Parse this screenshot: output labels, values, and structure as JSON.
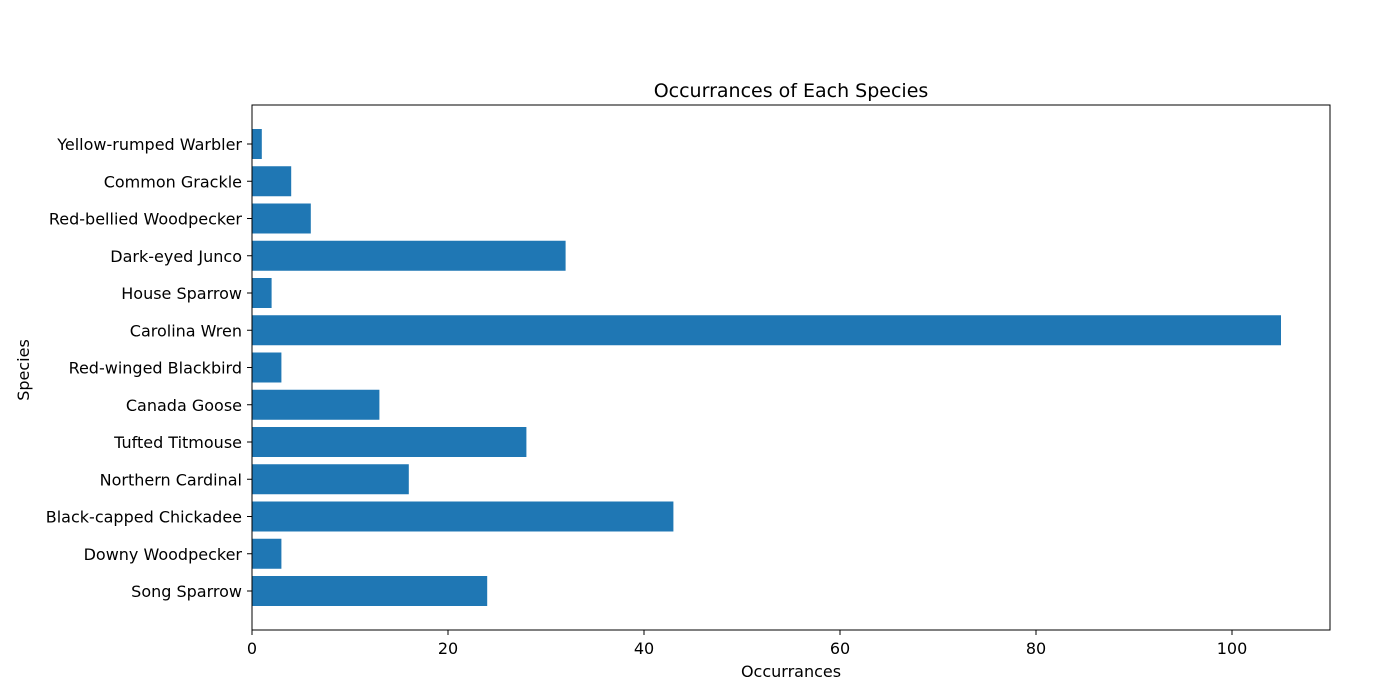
{
  "chart_data": {
    "type": "bar",
    "orientation": "horizontal",
    "title": "Occurrances of Each Species",
    "xlabel": "Occurrances",
    "ylabel": "Species",
    "xlim": [
      0,
      110
    ],
    "xticks": [
      0,
      20,
      40,
      60,
      80,
      100
    ],
    "grid": false,
    "categories": [
      "Song Sparrow",
      "Downy Woodpecker",
      "Black-capped Chickadee",
      "Northern Cardinal",
      "Tufted Titmouse",
      "Canada Goose",
      "Red-winged Blackbird",
      "Carolina Wren",
      "House Sparrow",
      "Dark-eyed Junco",
      "Red-bellied Woodpecker",
      "Common Grackle",
      "Yellow-rumped Warbler"
    ],
    "values": [
      24,
      3,
      43,
      16,
      28,
      13,
      3,
      105,
      2,
      32,
      6,
      4,
      1
    ],
    "bar_color": "#1f77b4"
  }
}
